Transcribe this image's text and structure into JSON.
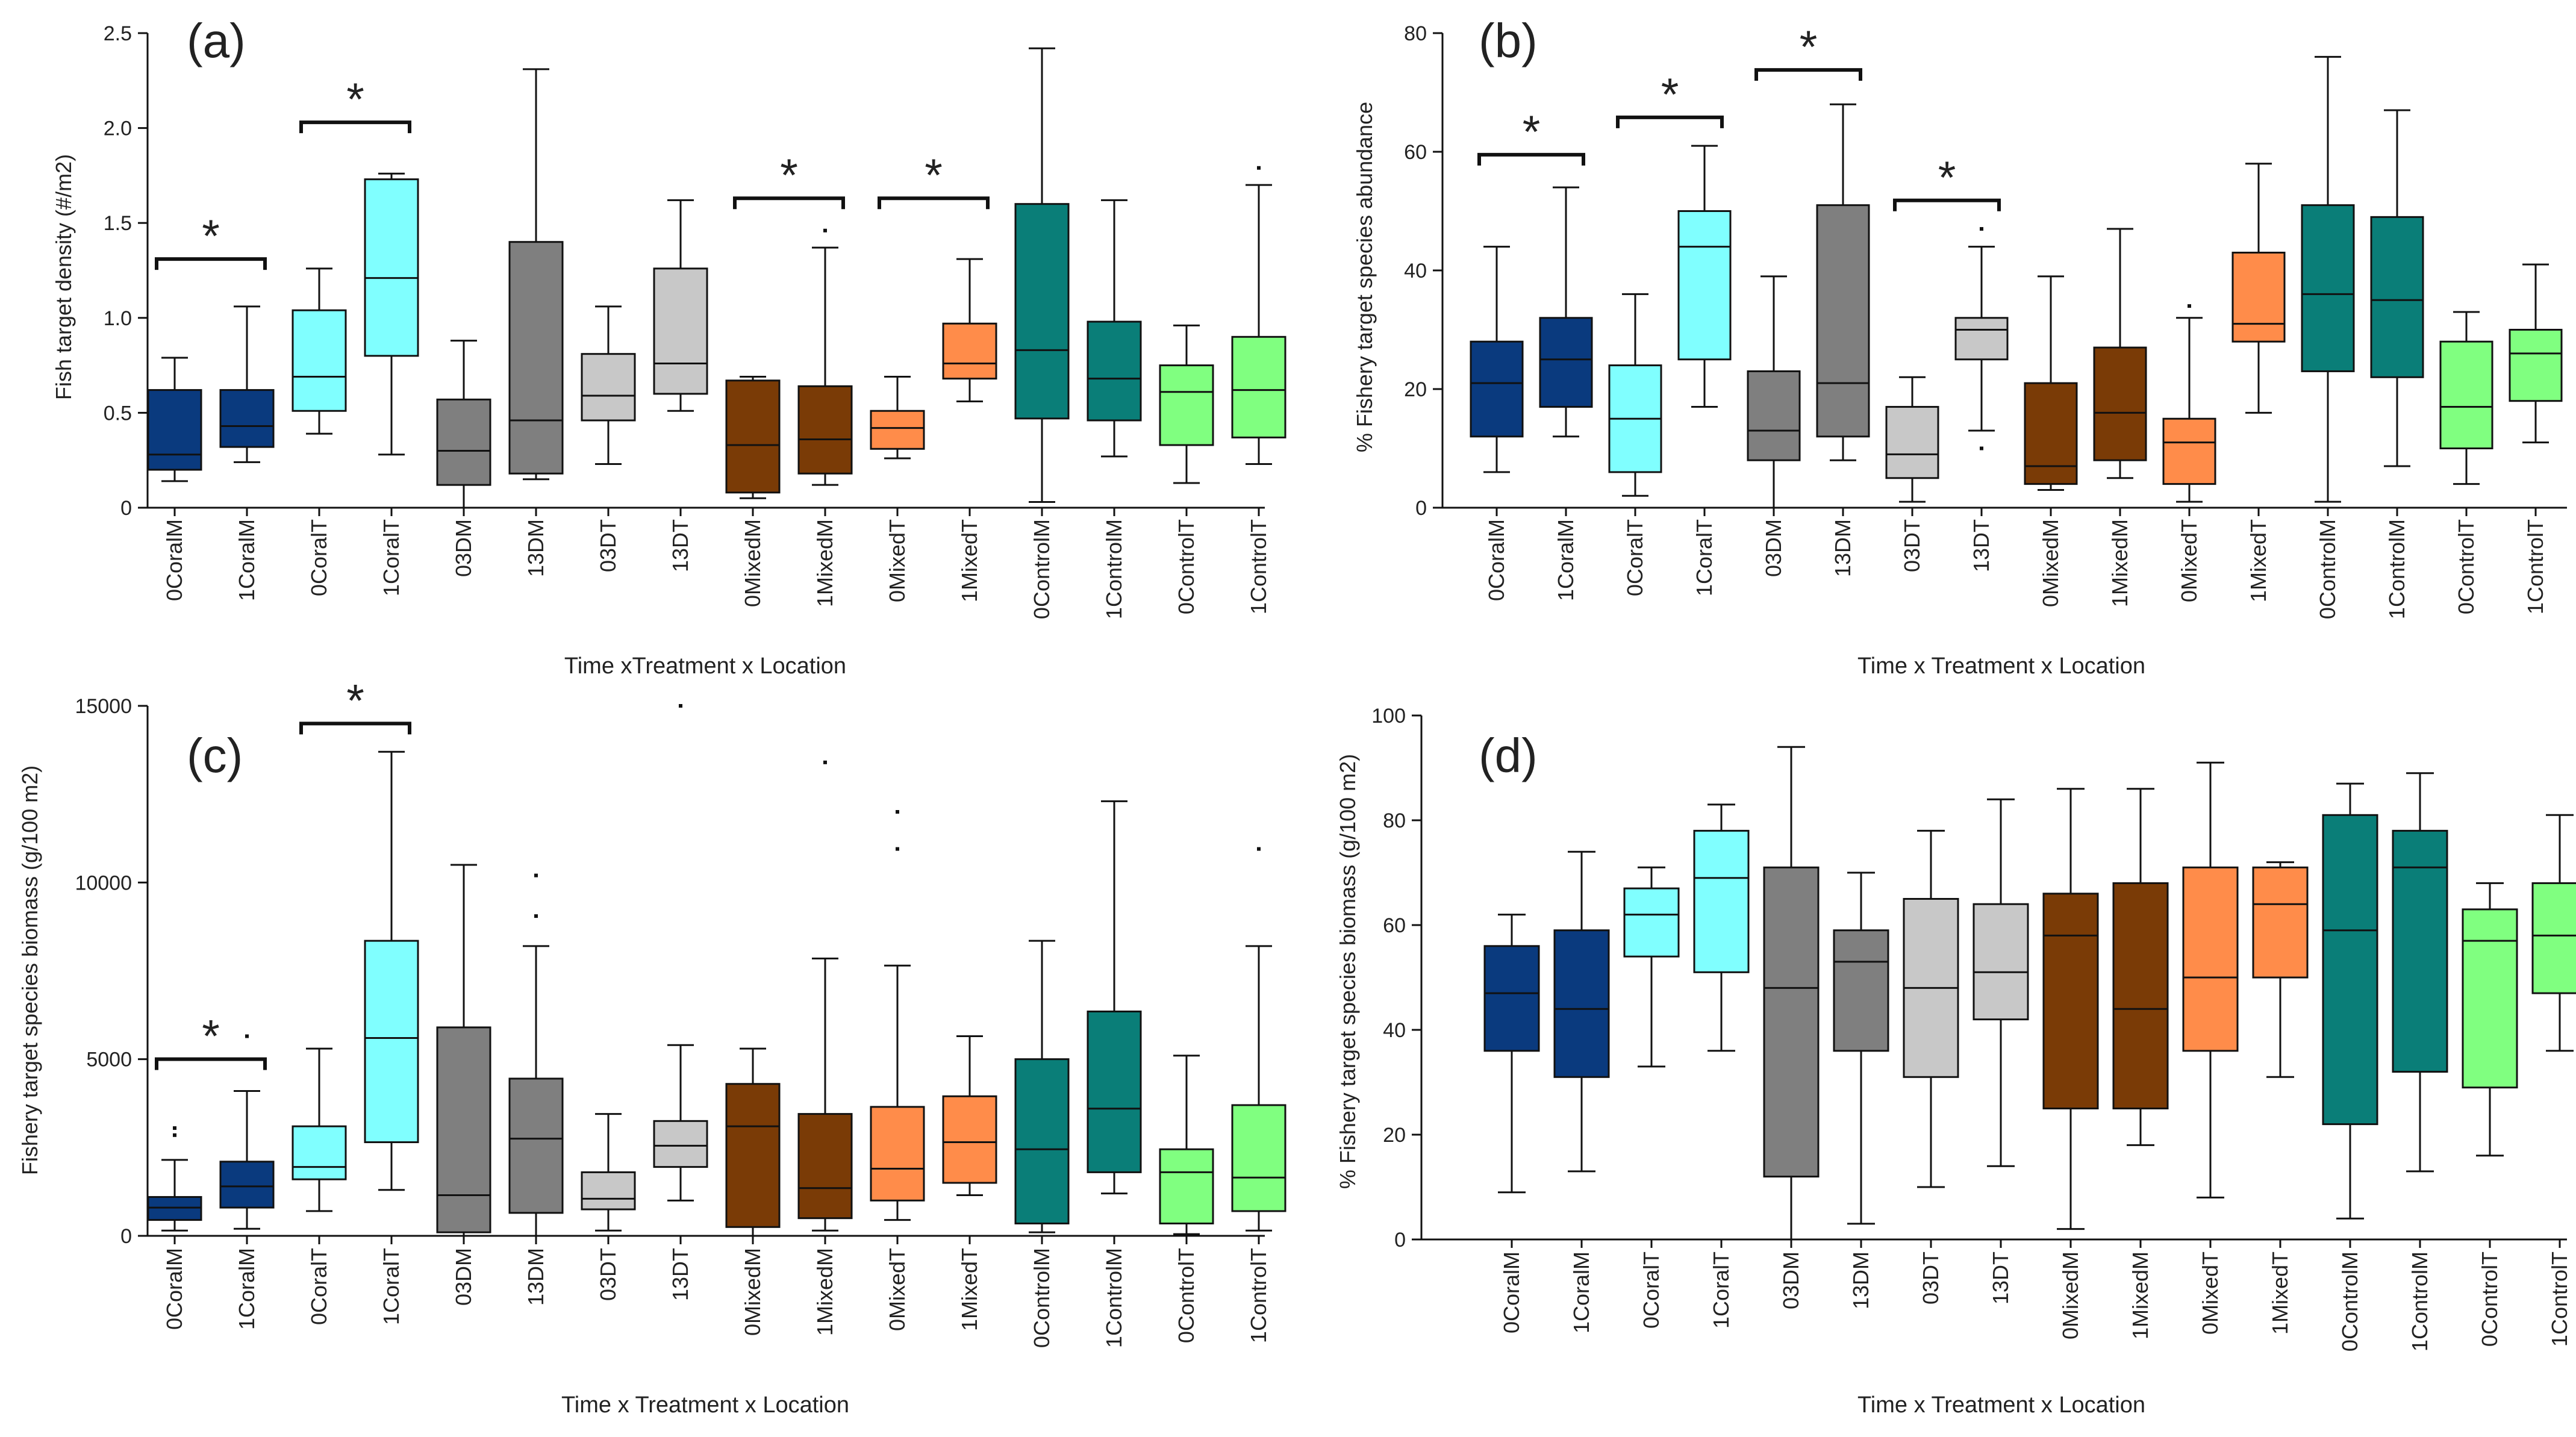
{
  "colors": {
    "coral_m": "#0a3a7e",
    "coral_t": "#80ffff",
    "dm": "#7f7f7f",
    "dt": "#c8c8c8",
    "mixed_m": "#7a3b06",
    "mixed_t": "#ff8c4a",
    "control_m": "#0a7e78",
    "control_t": "#80ff80"
  },
  "chart_data": [
    {
      "panel_label": "(a)",
      "type": "box",
      "ylabel": "Fish target density (#/m2)",
      "xlabel": "Time xTreatment x Location",
      "ylim": [
        0,
        2.5
      ],
      "yticks": [
        "0",
        "0.5",
        "1.0",
        "1.5",
        "2.0",
        "2.5"
      ],
      "ytick_values": [
        0,
        0.5,
        1.0,
        1.5,
        2.0,
        2.5
      ],
      "categories": [
        "0CoralM",
        "1CoralM",
        "0CoralT",
        "1CoralT",
        "03DM",
        "13DM",
        "03DT",
        "13DT",
        "0MixedM",
        "1MixedM",
        "0MixedT",
        "1MixedT",
        "0ControlM",
        "1ControlM",
        "0ControlT",
        "1ControlT"
      ],
      "boxes": [
        {
          "min": 0.14,
          "q1": 0.2,
          "median": 0.28,
          "q3": 0.62,
          "max": 0.79
        },
        {
          "min": 0.24,
          "q1": 0.32,
          "median": 0.43,
          "q3": 0.62,
          "max": 1.06
        },
        {
          "min": 0.39,
          "q1": 0.51,
          "median": 0.69,
          "q3": 1.04,
          "max": 1.26
        },
        {
          "min": 0.28,
          "q1": 0.8,
          "median": 1.21,
          "q3": 1.73,
          "max": 1.76
        },
        {
          "min": 0.0,
          "q1": 0.12,
          "median": 0.3,
          "q3": 0.57,
          "max": 0.88
        },
        {
          "min": 0.15,
          "q1": 0.18,
          "median": 0.46,
          "q3": 1.4,
          "max": 2.31
        },
        {
          "min": 0.23,
          "q1": 0.46,
          "median": 0.59,
          "q3": 0.81,
          "max": 1.06
        },
        {
          "min": 0.51,
          "q1": 0.6,
          "median": 0.76,
          "q3": 1.26,
          "max": 1.62
        },
        {
          "min": 0.05,
          "q1": 0.08,
          "median": 0.33,
          "q3": 0.67,
          "max": 0.69
        },
        {
          "min": 0.12,
          "q1": 0.18,
          "median": 0.36,
          "q3": 0.64,
          "max": 1.37
        },
        {
          "min": 0.26,
          "q1": 0.31,
          "median": 0.42,
          "q3": 0.51,
          "max": 0.69
        },
        {
          "min": 0.56,
          "q1": 0.68,
          "median": 0.76,
          "q3": 0.97,
          "max": 1.31
        },
        {
          "min": 0.03,
          "q1": 0.47,
          "median": 0.83,
          "q3": 1.6,
          "max": 2.42
        },
        {
          "min": 0.27,
          "q1": 0.46,
          "median": 0.68,
          "q3": 0.98,
          "max": 1.62
        },
        {
          "min": 0.13,
          "q1": 0.33,
          "median": 0.61,
          "q3": 0.75,
          "max": 0.96
        },
        {
          "min": 0.23,
          "q1": 0.37,
          "median": 0.62,
          "q3": 0.9,
          "max": 1.7
        }
      ],
      "outliers": [
        {
          "cat": 9,
          "value": 1.46
        },
        {
          "cat": 15,
          "value": 1.79
        }
      ],
      "significance": [
        {
          "from": 0,
          "to": 1,
          "value": 1.31,
          "label": "*"
        },
        {
          "from": 2,
          "to": 3,
          "value": 2.03,
          "label": "*"
        },
        {
          "from": 8,
          "to": 9,
          "value": 1.63,
          "label": "*"
        },
        {
          "from": 10,
          "to": 11,
          "value": 1.63,
          "label": "*"
        }
      ]
    },
    {
      "panel_label": "(b)",
      "type": "box",
      "ylabel": "% Fishery target species abundance",
      "xlabel": "Time x Treatment x Location",
      "ylim": [
        0,
        80
      ],
      "yticks": [
        "0",
        "20",
        "40",
        "60",
        "80"
      ],
      "ytick_values": [
        0,
        20,
        40,
        60,
        80
      ],
      "categories": [
        "0CoralM",
        "1CoralM",
        "0CoralT",
        "1CoralT",
        "03DM",
        "13DM",
        "03DT",
        "13DT",
        "0MixedM",
        "1MixedM",
        "0MixedT",
        "1MixedT",
        "0ControlM",
        "1ControlM",
        "0ControlT",
        "1ControlT"
      ],
      "boxes": [
        {
          "min": 6,
          "q1": 12,
          "median": 21,
          "q3": 28,
          "max": 44
        },
        {
          "min": 12,
          "q1": 17,
          "median": 25,
          "q3": 32,
          "max": 54
        },
        {
          "min": 2,
          "q1": 6,
          "median": 15,
          "q3": 24,
          "max": 36
        },
        {
          "min": 17,
          "q1": 25,
          "median": 44,
          "q3": 50,
          "max": 61
        },
        {
          "min": 0,
          "q1": 8,
          "median": 13,
          "q3": 23,
          "max": 39
        },
        {
          "min": 8,
          "q1": 12,
          "median": 21,
          "q3": 51,
          "max": 68
        },
        {
          "min": 1,
          "q1": 5,
          "median": 9,
          "q3": 17,
          "max": 22
        },
        {
          "min": 13,
          "q1": 25,
          "median": 30,
          "q3": 32,
          "max": 44
        },
        {
          "min": 3,
          "q1": 4,
          "median": 7,
          "q3": 21,
          "max": 39
        },
        {
          "min": 5,
          "q1": 8,
          "median": 16,
          "q3": 27,
          "max": 47
        },
        {
          "min": 1,
          "q1": 4,
          "median": 11,
          "q3": 15,
          "max": 32
        },
        {
          "min": 16,
          "q1": 28,
          "median": 31,
          "q3": 43,
          "max": 58
        },
        {
          "min": 1,
          "q1": 23,
          "median": 36,
          "q3": 51,
          "max": 76
        },
        {
          "min": 7,
          "q1": 22,
          "median": 35,
          "q3": 49,
          "max": 67
        },
        {
          "min": 4,
          "q1": 10,
          "median": 17,
          "q3": 28,
          "max": 33
        },
        {
          "min": 11,
          "q1": 18,
          "median": 26,
          "q3": 30,
          "max": 41
        }
      ],
      "outliers": [
        {
          "cat": 7,
          "value": 10
        },
        {
          "cat": 7,
          "value": 47
        },
        {
          "cat": 10,
          "value": 34
        }
      ],
      "significance": [
        {
          "from": 0,
          "to": 1,
          "value": 59.5,
          "label": "*"
        },
        {
          "from": 2,
          "to": 3,
          "value": 65.8,
          "label": "*"
        },
        {
          "from": 4,
          "to": 5,
          "value": 73.8,
          "label": "*"
        },
        {
          "from": 6,
          "to": 7,
          "value": 51.8,
          "label": "*"
        }
      ]
    },
    {
      "panel_label": "(c)",
      "type": "box",
      "ylabel": "Fishery target species biomass (g/100 m2)",
      "xlabel": "Time x Treatment x Location",
      "ylim": [
        0,
        15000
      ],
      "yticks": [
        "0",
        "5000",
        "10000",
        "15000"
      ],
      "ytick_values": [
        0,
        5000,
        10000,
        15000
      ],
      "categories": [
        "0CoralM",
        "1CoralM",
        "0CoralT",
        "1CoralT",
        "03DM",
        "13DM",
        "03DT",
        "13DT",
        "0MixedM",
        "1MixedM",
        "0MixedT",
        "1MixedT",
        "0ControlM",
        "1ControlM",
        "0ControlT",
        "1ControlT"
      ],
      "boxes": [
        {
          "min": 150,
          "q1": 450,
          "median": 800,
          "q3": 1100,
          "max": 2150
        },
        {
          "min": 200,
          "q1": 800,
          "median": 1400,
          "q3": 2100,
          "max": 4100
        },
        {
          "min": 700,
          "q1": 1600,
          "median": 1950,
          "q3": 3100,
          "max": 5300
        },
        {
          "min": 1300,
          "q1": 2650,
          "median": 5600,
          "q3": 8350,
          "max": 13700
        },
        {
          "min": 0,
          "q1": 100,
          "median": 1150,
          "q3": 5900,
          "max": 10500
        },
        {
          "min": 0,
          "q1": 650,
          "median": 2750,
          "q3": 4450,
          "max": 8200
        },
        {
          "min": 150,
          "q1": 750,
          "median": 1050,
          "q3": 1800,
          "max": 3450
        },
        {
          "min": 1000,
          "q1": 1950,
          "median": 2550,
          "q3": 3250,
          "max": 5400
        },
        {
          "min": 0,
          "q1": 250,
          "median": 3100,
          "q3": 4300,
          "max": 5300
        },
        {
          "min": 150,
          "q1": 500,
          "median": 1350,
          "q3": 3450,
          "max": 7850
        },
        {
          "min": 450,
          "q1": 1000,
          "median": 1900,
          "q3": 3650,
          "max": 7650
        },
        {
          "min": 1150,
          "q1": 1500,
          "median": 2650,
          "q3": 3950,
          "max": 5650
        },
        {
          "min": 100,
          "q1": 350,
          "median": 2450,
          "q3": 5000,
          "max": 8350
        },
        {
          "min": 1200,
          "q1": 1800,
          "median": 3600,
          "q3": 6350,
          "max": 12300
        },
        {
          "min": 50,
          "q1": 350,
          "median": 1800,
          "q3": 2450,
          "max": 5100
        },
        {
          "min": 150,
          "q1": 700,
          "median": 1650,
          "q3": 3700,
          "max": 8200
        }
      ],
      "outliers": [
        {
          "cat": 0,
          "value": 2850
        },
        {
          "cat": 0,
          "value": 3050
        },
        {
          "cat": 1,
          "value": 5650
        },
        {
          "cat": 5,
          "value": 9050
        },
        {
          "cat": 5,
          "value": 10200
        },
        {
          "cat": 7,
          "value": 15000
        },
        {
          "cat": 9,
          "value": 13400
        },
        {
          "cat": 10,
          "value": 10950
        },
        {
          "cat": 10,
          "value": 12000
        },
        {
          "cat": 15,
          "value": 10950
        }
      ],
      "significance": [
        {
          "from": 0,
          "to": 1,
          "value": 5000,
          "label": "*"
        },
        {
          "from": 2,
          "to": 3,
          "value": 14500,
          "label": "*"
        }
      ]
    },
    {
      "panel_label": "(d)",
      "type": "box",
      "ylabel": "% Fishery target species biomass (g/100 m2)",
      "xlabel": "Time x Treatment x Location",
      "ylim": [
        0,
        100
      ],
      "yticks": [
        "0",
        "20",
        "40",
        "60",
        "80",
        "100"
      ],
      "ytick_values": [
        0,
        20,
        40,
        60,
        80,
        100
      ],
      "categories": [
        "0CoralM",
        "1CoralM",
        "0CoralT",
        "1CoralT",
        "03DM",
        "13DM",
        "03DT",
        "13DT",
        "0MixedM",
        "1MixedM",
        "0MixedT",
        "1MixedT",
        "0ControlM",
        "1ControlM",
        "0ControlT",
        "1ControlT"
      ],
      "boxes": [
        {
          "min": 9,
          "q1": 36,
          "median": 47,
          "q3": 56,
          "max": 62
        },
        {
          "min": 13,
          "q1": 31,
          "median": 44,
          "q3": 59,
          "max": 74
        },
        {
          "min": 33,
          "q1": 54,
          "median": 62,
          "q3": 67,
          "max": 71
        },
        {
          "min": 36,
          "q1": 51,
          "median": 69,
          "q3": 78,
          "max": 83
        },
        {
          "min": 0,
          "q1": 12,
          "median": 48,
          "q3": 71,
          "max": 94
        },
        {
          "min": 3,
          "q1": 36,
          "median": 53,
          "q3": 59,
          "max": 70
        },
        {
          "min": 10,
          "q1": 31,
          "median": 48,
          "q3": 65,
          "max": 78
        },
        {
          "min": 14,
          "q1": 42,
          "median": 51,
          "q3": 64,
          "max": 84
        },
        {
          "min": 2,
          "q1": 25,
          "median": 58,
          "q3": 66,
          "max": 86
        },
        {
          "min": 18,
          "q1": 25,
          "median": 44,
          "q3": 68,
          "max": 86
        },
        {
          "min": 8,
          "q1": 36,
          "median": 50,
          "q3": 71,
          "max": 91
        },
        {
          "min": 31,
          "q1": 50,
          "median": 64,
          "q3": 71,
          "max": 72
        },
        {
          "min": 4,
          "q1": 22,
          "median": 59,
          "q3": 81,
          "max": 87
        },
        {
          "min": 13,
          "q1": 32,
          "median": 71,
          "q3": 78,
          "max": 89
        },
        {
          "min": 16,
          "q1": 29,
          "median": 57,
          "q3": 63,
          "max": 68
        },
        {
          "min": 36,
          "q1": 47,
          "median": 58,
          "q3": 68,
          "max": 81
        }
      ],
      "outliers": [],
      "significance": []
    }
  ]
}
